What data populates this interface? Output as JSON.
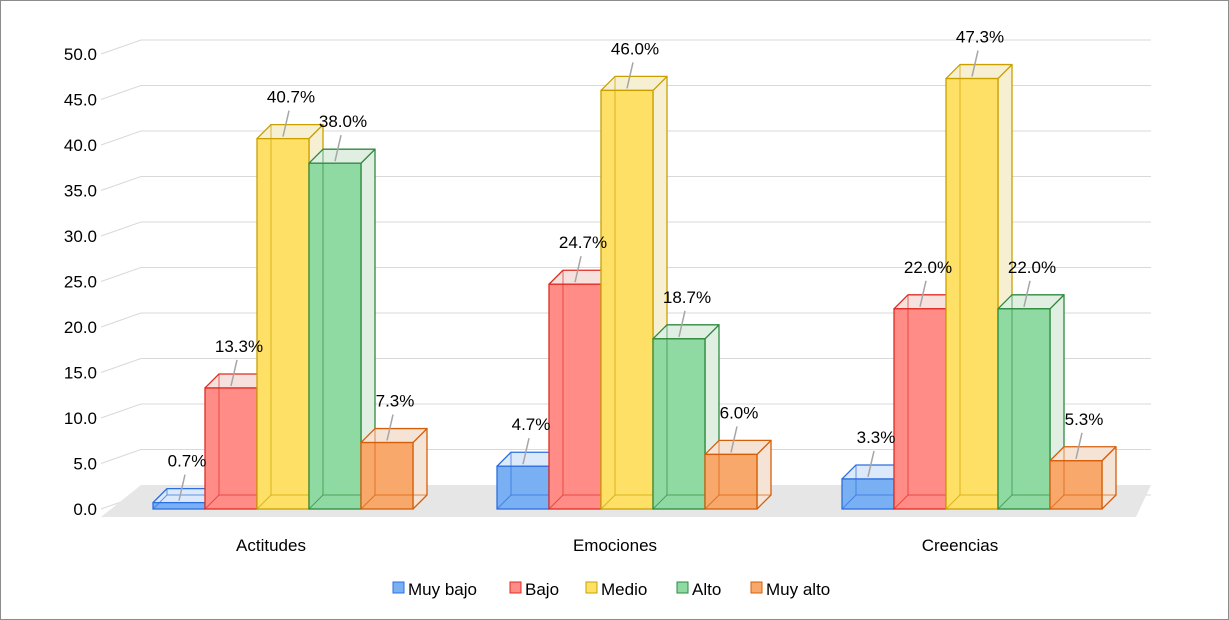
{
  "chart_data": {
    "type": "bar",
    "categories": [
      "Actitudes",
      "Emociones",
      "Creencias"
    ],
    "series": [
      {
        "name": "Muy bajo",
        "values": [
          0.7,
          4.7,
          3.3
        ],
        "labels": [
          "0.7%",
          "4.7%",
          "3.3%"
        ]
      },
      {
        "name": "Bajo",
        "values": [
          13.3,
          24.7,
          22.0
        ],
        "labels": [
          "13.3%",
          "24.7%",
          "22.0%"
        ]
      },
      {
        "name": "Medio",
        "values": [
          40.7,
          46.0,
          47.3
        ],
        "labels": [
          "40.7%",
          "46.0%",
          "47.3%"
        ]
      },
      {
        "name": "Alto",
        "values": [
          38.0,
          18.7,
          22.0
        ],
        "labels": [
          "38.0%",
          "18.7%",
          "22.0%"
        ]
      },
      {
        "name": "Muy alto",
        "values": [
          7.3,
          6.0,
          5.3
        ],
        "labels": [
          "7.3%",
          "6.0%",
          "5.3%"
        ]
      }
    ],
    "yticks": [
      "0.0",
      "5.0",
      "10.0",
      "15.0",
      "20.0",
      "25.0",
      "30.0",
      "35.0",
      "40.0",
      "45.0",
      "50.0"
    ],
    "ylim": [
      0,
      50
    ],
    "style": "3d-clustered-column",
    "grid": true,
    "legend": "bottom"
  },
  "colors": {
    "Muy bajo": {
      "fill": "#79b0f3",
      "side": "#dbe9fb",
      "stroke": "#2d6fe0"
    },
    "Bajo": {
      "fill": "#ff8c87",
      "side": "#f6e1df",
      "stroke": "#e02c22"
    },
    "Medio": {
      "fill": "#ffe066",
      "side": "#f6efd2",
      "stroke": "#c9a000"
    },
    "Alto": {
      "fill": "#8fd9a2",
      "side": "#e1efe3",
      "stroke": "#2e8a3e"
    },
    "Muy alto": {
      "fill": "#f8a86a",
      "side": "#f5e4d6",
      "stroke": "#d45f0a"
    },
    "grid": "#d9d9d9",
    "floor": "#e6e6e6",
    "leader": "#a6a6a6"
  }
}
